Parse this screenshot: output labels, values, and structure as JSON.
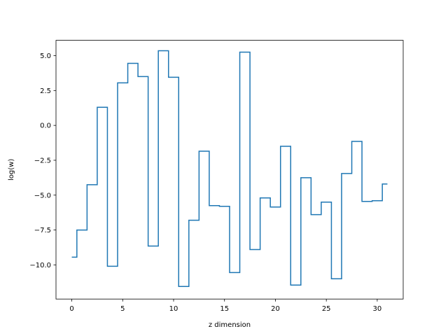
{
  "chart_data": {
    "type": "line",
    "drawstyle": "steps-mid",
    "title": "",
    "xlabel": "z dimension",
    "ylabel": "log(w)",
    "xlim": [
      -1.55,
      32.55
    ],
    "ylim": [
      -12.45,
      6.1
    ],
    "xticks": [
      0,
      5,
      10,
      15,
      20,
      25,
      30
    ],
    "xtick_labels": [
      "0",
      "5",
      "10",
      "15",
      "20",
      "25",
      "30"
    ],
    "yticks": [
      5.0,
      2.5,
      0.0,
      -2.5,
      -5.0,
      -7.5,
      -10.0
    ],
    "ytick_labels": [
      "5.0",
      "2.5",
      "0.0",
      "−2.5",
      "−5.0",
      "−7.5",
      "−10.0"
    ],
    "grid": false,
    "legend": false,
    "series": [
      {
        "color": "#1f77b4",
        "x": [
          0,
          1,
          2,
          3,
          4,
          5,
          6,
          7,
          8,
          9,
          10,
          11,
          12,
          13,
          14,
          15,
          16,
          17,
          18,
          19,
          20,
          21,
          22,
          23,
          24,
          25,
          26,
          27,
          28,
          29,
          30,
          31
        ],
        "y": [
          -9.45,
          -7.5,
          -4.25,
          1.3,
          -10.1,
          3.05,
          4.45,
          3.5,
          -8.65,
          5.35,
          3.45,
          -11.55,
          -6.8,
          -1.85,
          -5.75,
          -5.8,
          -10.55,
          5.25,
          -8.9,
          -5.2,
          -5.85,
          -1.5,
          -11.45,
          -3.75,
          -6.4,
          -5.5,
          -11.0,
          -3.45,
          -1.15,
          -5.45,
          -5.4,
          -4.2
        ]
      }
    ]
  }
}
